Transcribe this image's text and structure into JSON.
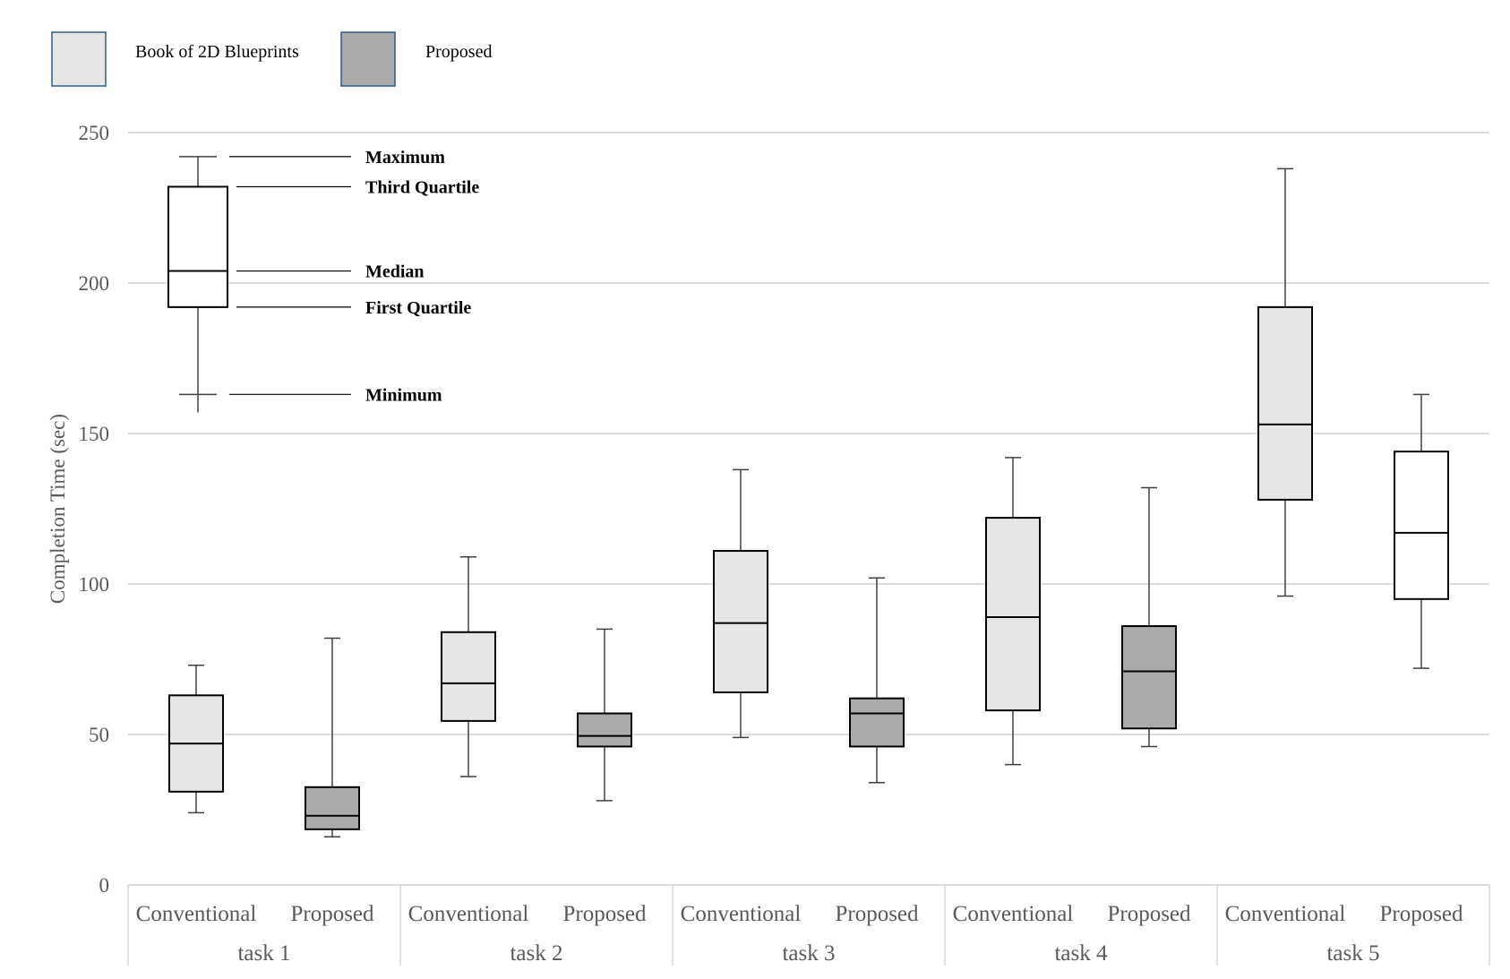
{
  "chart_data": {
    "type": "boxplot",
    "ylabel": "Completion Time (sec)",
    "ylim": [
      0,
      250
    ],
    "yticks": [
      0,
      50,
      100,
      150,
      200,
      250
    ],
    "grid": true,
    "legend_position": "top-left",
    "legend": [
      {
        "name": "Book of 2D Blueprints",
        "color": "#e6e6e6"
      },
      {
        "name": "Proposed",
        "color": "#aaaaaa"
      }
    ],
    "groups": [
      {
        "task": "task 1",
        "boxes": [
          {
            "label": "Conventional",
            "fill": "#e6e6e6",
            "min": 24,
            "q1": 31,
            "median": 47,
            "q3": 63,
            "max": 73
          },
          {
            "label": "Proposed",
            "fill": "#aaaaaa",
            "min": 16,
            "q1": 18.5,
            "median": 23,
            "q3": 32.5,
            "max": 82
          }
        ]
      },
      {
        "task": "task 2",
        "boxes": [
          {
            "label": "Conventional",
            "fill": "#e6e6e6",
            "min": 36,
            "q1": 54.5,
            "median": 67,
            "q3": 84,
            "max": 109
          },
          {
            "label": "Proposed",
            "fill": "#aaaaaa",
            "min": 28,
            "q1": 46,
            "median": 49.5,
            "q3": 57,
            "max": 85
          }
        ]
      },
      {
        "task": "task 3",
        "boxes": [
          {
            "label": "Conventional",
            "fill": "#e6e6e6",
            "min": 49,
            "q1": 64,
            "median": 87,
            "q3": 111,
            "max": 138
          },
          {
            "label": "Proposed",
            "fill": "#aaaaaa",
            "min": 34,
            "q1": 46,
            "median": 57,
            "q3": 62,
            "max": 102
          }
        ]
      },
      {
        "task": "task 4",
        "boxes": [
          {
            "label": "Conventional",
            "fill": "#e6e6e6",
            "min": 40,
            "q1": 58,
            "median": 89,
            "q3": 122,
            "max": 142
          },
          {
            "label": "Proposed",
            "fill": "#aaaaaa",
            "min": 46,
            "q1": 52,
            "median": 71,
            "q3": 86,
            "max": 132
          }
        ]
      },
      {
        "task": "task 5",
        "boxes": [
          {
            "label": "Conventional",
            "fill": "#e6e6e6",
            "min": 96,
            "q1": 128,
            "median": 153,
            "q3": 192,
            "max": 238
          },
          {
            "label": "Proposed",
            "fill": "#ffffff",
            "min": 72,
            "q1": 95,
            "median": 117,
            "q3": 144,
            "max": 163
          }
        ]
      }
    ],
    "explanatory_box": {
      "min": 163,
      "q1": 192,
      "median": 204,
      "q3": 232,
      "max": 242,
      "whisker_low": 157,
      "annotations": [
        {
          "text": "Maximum",
          "value": 242
        },
        {
          "text": "Third Quartile",
          "value": 232
        },
        {
          "text": "Median",
          "value": 204
        },
        {
          "text": "First Quartile",
          "value": 192
        },
        {
          "text": "Minimum",
          "value": 163
        }
      ]
    }
  }
}
